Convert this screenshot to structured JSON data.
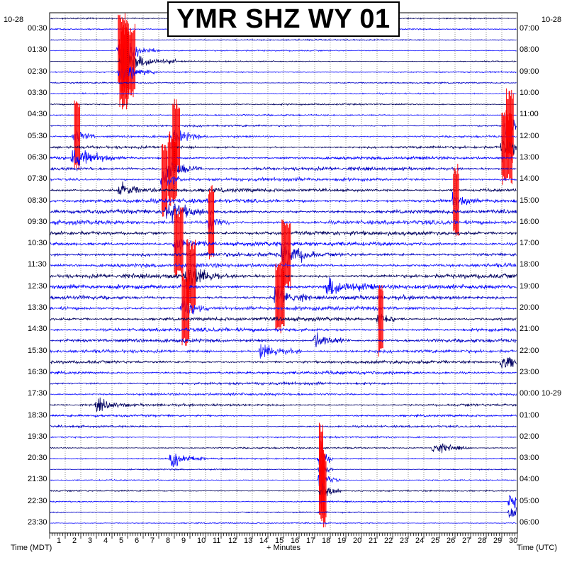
{
  "title": "YMR SHZ WY 01",
  "colors": {
    "trace_cycle": [
      "#000060",
      "#0000ff",
      "#0000c8",
      "#1a1aff"
    ],
    "clipped": "#ff0000",
    "grid": "#000000",
    "background": "#ffffff"
  },
  "chart_data": {
    "type": "line",
    "title": "YMR SHZ WY 01",
    "xlabel": "+ Minutes",
    "ylabel_left": "Time (MDT)",
    "ylabel_right": "Time (UTC)",
    "x_range": [
      0,
      30
    ],
    "x_ticks": [
      "1",
      "2",
      "3",
      "4",
      "5",
      "6",
      "7",
      "8",
      "9",
      "10",
      "11",
      "12",
      "13",
      "14",
      "15",
      "16",
      "17",
      "18",
      "19",
      "20",
      "21",
      "22",
      "23",
      "24",
      "25",
      "26",
      "27",
      "28",
      "29",
      "30"
    ],
    "date_left_top": "10-28",
    "date_right_top": "10-28",
    "date_right_change": "10-29",
    "left_ticks": [
      "00:30",
      "01:30",
      "02:30",
      "03:30",
      "04:30",
      "05:30",
      "06:30",
      "07:30",
      "08:30",
      "09:30",
      "10:30",
      "11:30",
      "12:30",
      "13:30",
      "14:30",
      "15:30",
      "16:30",
      "17:30",
      "18:30",
      "19:30",
      "20:30",
      "21:30",
      "22:30",
      "23:30"
    ],
    "right_ticks": [
      "07:00",
      "08:00",
      "09:00",
      "10:00",
      "11:00",
      "12:00",
      "13:00",
      "14:00",
      "15:00",
      "16:00",
      "17:00",
      "18:00",
      "19:00",
      "20:00",
      "21:00",
      "22:00",
      "23:00",
      "00:00",
      "01:00",
      "02:00",
      "03:00",
      "04:00",
      "05:00",
      "06:00"
    ],
    "traces_per_hour": 2,
    "trace_count": 48,
    "trace_noise_level": [
      0.3,
      0.3,
      0.3,
      0.3,
      0.3,
      0.3,
      0.3,
      0.3,
      0.35,
      0.35,
      0.45,
      0.5,
      0.6,
      0.7,
      0.8,
      0.85,
      0.9,
      0.95,
      0.95,
      1.0,
      1.0,
      1.0,
      1.0,
      1.0,
      1.0,
      1.0,
      0.95,
      0.95,
      0.9,
      0.85,
      0.8,
      0.75,
      0.7,
      0.7,
      0.65,
      0.6,
      0.55,
      0.5,
      0.45,
      0.4,
      0.35,
      0.35,
      0.3,
      0.3,
      0.3,
      0.3,
      0.3,
      0.3
    ],
    "events": [
      {
        "trace": 3,
        "minute": 4.4,
        "amp": 4.0,
        "dur": 1.2,
        "clipped": true
      },
      {
        "trace": 4,
        "minute": 4.6,
        "amp": 3.5,
        "dur": 1.6,
        "clipped": true
      },
      {
        "trace": 5,
        "minute": 4.5,
        "amp": 3.0,
        "dur": 1.0,
        "clipped": true
      },
      {
        "trace": 10,
        "minute": 29.3,
        "amp": 3.5,
        "dur": 0.8,
        "clipped": true
      },
      {
        "trace": 11,
        "minute": 1.6,
        "amp": 3.0,
        "dur": 0.6,
        "clipped": true
      },
      {
        "trace": 11,
        "minute": 7.9,
        "amp": 3.0,
        "dur": 0.8,
        "clipped": true
      },
      {
        "trace": 12,
        "minute": 29.0,
        "amp": 3.0,
        "dur": 1.2,
        "clipped": true
      },
      {
        "trace": 13,
        "minute": 1.5,
        "amp": 3.0,
        "dur": 1.2,
        "clipped": false
      },
      {
        "trace": 14,
        "minute": 7.6,
        "amp": 3.5,
        "dur": 1.0,
        "clipped": true
      },
      {
        "trace": 15,
        "minute": 7.2,
        "amp": 3.5,
        "dur": 0.6,
        "clipped": true
      },
      {
        "trace": 16,
        "minute": 4.5,
        "amp": 2.0,
        "dur": 1.0,
        "clipped": false
      },
      {
        "trace": 17,
        "minute": 25.9,
        "amp": 2.5,
        "dur": 0.6,
        "clipped": true
      },
      {
        "trace": 18,
        "minute": 7.5,
        "amp": 3.0,
        "dur": 1.4,
        "clipped": false
      },
      {
        "trace": 19,
        "minute": 10.2,
        "amp": 3.0,
        "dur": 0.6,
        "clipped": true
      },
      {
        "trace": 21,
        "minute": 8.0,
        "amp": 3.0,
        "dur": 1.0,
        "clipped": true
      },
      {
        "trace": 22,
        "minute": 14.9,
        "amp": 4.0,
        "dur": 1.0,
        "clipped": true
      },
      {
        "trace": 24,
        "minute": 8.8,
        "amp": 4.0,
        "dur": 1.0,
        "clipped": true
      },
      {
        "trace": 25,
        "minute": 17.8,
        "amp": 3.0,
        "dur": 1.4,
        "clipped": false
      },
      {
        "trace": 26,
        "minute": 14.5,
        "amp": 3.5,
        "dur": 1.0,
        "clipped": true
      },
      {
        "trace": 27,
        "minute": 8.5,
        "amp": 3.5,
        "dur": 0.8,
        "clipped": true
      },
      {
        "trace": 28,
        "minute": 21.1,
        "amp": 3.5,
        "dur": 0.5,
        "clipped": true
      },
      {
        "trace": 30,
        "minute": 17.0,
        "amp": 2.5,
        "dur": 1.0,
        "clipped": false
      },
      {
        "trace": 31,
        "minute": 13.5,
        "amp": 2.5,
        "dur": 1.2,
        "clipped": false
      },
      {
        "trace": 32,
        "minute": 29.0,
        "amp": 2.5,
        "dur": 1.2,
        "clipped": false
      },
      {
        "trace": 36,
        "minute": 3.0,
        "amp": 2.0,
        "dur": 1.0,
        "clipped": false
      },
      {
        "trace": 40,
        "minute": 24.5,
        "amp": 2.0,
        "dur": 1.2,
        "clipped": false
      },
      {
        "trace": 41,
        "minute": 7.8,
        "amp": 2.5,
        "dur": 1.0,
        "clipped": false
      },
      {
        "trace": 41,
        "minute": 17.3,
        "amp": 3.5,
        "dur": 0.4,
        "clipped": true
      },
      {
        "trace": 42,
        "minute": 17.3,
        "amp": 3.5,
        "dur": 0.4,
        "clipped": true
      },
      {
        "trace": 43,
        "minute": 17.3,
        "amp": 3.0,
        "dur": 0.6,
        "clipped": true
      },
      {
        "trace": 44,
        "minute": 17.4,
        "amp": 3.0,
        "dur": 0.6,
        "clipped": true
      },
      {
        "trace": 45,
        "minute": 29.5,
        "amp": 2.5,
        "dur": 1.6,
        "clipped": false
      },
      {
        "trace": 46,
        "minute": 29.5,
        "amp": 2.0,
        "dur": 1.0,
        "clipped": false
      }
    ]
  }
}
